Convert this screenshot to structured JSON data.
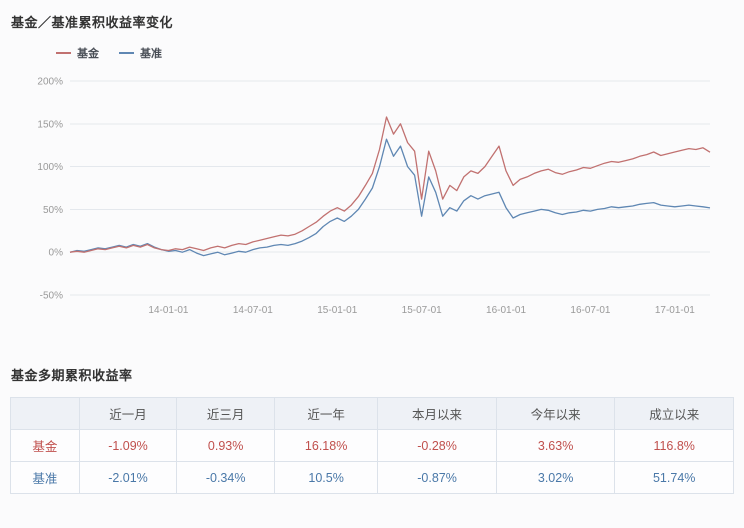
{
  "sections": {
    "chart_title": "基金／基准累积收益率变化",
    "table_title": "基金多期累积收益率"
  },
  "colors": {
    "fund_line": "#c17170",
    "benchmark_line": "#5f87b3",
    "fund_text": "#c0504d",
    "benchmark_text": "#4a78a8",
    "grid": "#e4e8ed",
    "axis_text": "#999999"
  },
  "chart_data": {
    "type": "line",
    "title": "基金／基准累积收益率变化",
    "xlabel": "",
    "ylabel": "",
    "ylim": [
      -50,
      200
    ],
    "grid": "horizontal",
    "legend_position": "top-left",
    "yticks": [
      200,
      150,
      100,
      50,
      0,
      -50
    ],
    "ytick_labels": [
      "200%",
      "150%",
      "100%",
      "50%",
      "0%",
      "-50%"
    ],
    "xticks": [
      {
        "label": "14-01-01",
        "f": 0.1538
      },
      {
        "label": "14-07-01",
        "f": 0.2857
      },
      {
        "label": "15-01-01",
        "f": 0.4176
      },
      {
        "label": "15-07-01",
        "f": 0.5495
      },
      {
        "label": "16-01-01",
        "f": 0.6813
      },
      {
        "label": "16-07-01",
        "f": 0.8132
      },
      {
        "label": "17-01-01",
        "f": 0.9451
      }
    ],
    "series": [
      {
        "name": "基金",
        "color": "#c17170",
        "values": [
          0,
          1,
          0,
          2,
          4,
          3,
          5,
          7,
          5,
          8,
          6,
          9,
          5,
          3,
          2,
          4,
          3,
          6,
          4,
          2,
          5,
          7,
          5,
          8,
          10,
          9,
          12,
          14,
          16,
          18,
          20,
          19,
          21,
          25,
          30,
          35,
          42,
          48,
          52,
          48,
          55,
          65,
          78,
          92,
          120,
          158,
          138,
          150,
          128,
          118,
          62,
          118,
          95,
          62,
          78,
          72,
          88,
          95,
          92,
          100,
          112,
          124,
          95,
          78,
          85,
          88,
          92,
          95,
          97,
          93,
          91,
          94,
          96,
          99,
          98,
          101,
          104,
          106,
          105,
          107,
          109,
          112,
          114,
          117,
          113,
          115,
          117,
          119,
          121,
          120,
          122,
          116.8
        ]
      },
      {
        "name": "基准",
        "color": "#5f87b3",
        "values": [
          0,
          2,
          1,
          3,
          5,
          4,
          6,
          8,
          6,
          9,
          7,
          10,
          6,
          3,
          1,
          2,
          0,
          3,
          -1,
          -4,
          -2,
          0,
          -3,
          -1,
          1,
          0,
          3,
          5,
          6,
          8,
          9,
          8,
          10,
          13,
          17,
          22,
          30,
          36,
          40,
          36,
          42,
          50,
          62,
          75,
          100,
          132,
          112,
          124,
          100,
          90,
          42,
          88,
          70,
          42,
          52,
          48,
          60,
          66,
          62,
          66,
          68,
          70,
          52,
          40,
          44,
          46,
          48,
          50,
          49,
          46,
          44,
          46,
          47,
          49,
          48,
          50,
          51,
          53,
          52,
          53,
          54,
          56,
          57,
          58,
          55,
          54,
          53,
          54,
          55,
          54,
          53,
          51.74
        ]
      }
    ]
  },
  "table": {
    "headers": [
      "",
      "近一月",
      "近三月",
      "近一年",
      "本月以来",
      "今年以来",
      "成立以来"
    ],
    "rows": [
      {
        "label": "基金",
        "color": "#c0504d",
        "values": [
          "-1.09%",
          "0.93%",
          "16.18%",
          "-0.28%",
          "3.63%",
          "116.8%"
        ]
      },
      {
        "label": "基准",
        "color": "#4a78a8",
        "values": [
          "-2.01%",
          "-0.34%",
          "10.5%",
          "-0.87%",
          "3.02%",
          "51.74%"
        ]
      }
    ]
  }
}
